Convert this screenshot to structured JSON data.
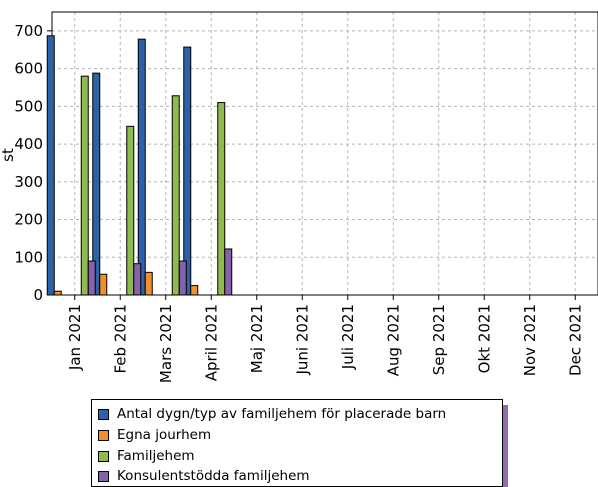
{
  "chart_data": {
    "type": "bar",
    "ylabel": "st",
    "ylim": [
      0,
      750
    ],
    "yticks": [
      0,
      100,
      200,
      300,
      400,
      500,
      600,
      700
    ],
    "grid": true,
    "legend_position": "bottom",
    "categories": [
      "Jan 2021",
      "Feb 2021",
      "Mars 2021",
      "April 2021",
      "Maj 2021",
      "Juni 2021",
      "Juli 2021",
      "Aug 2021",
      "Sep 2021",
      "Okt 2021",
      "Nov 2021",
      "Dec 2021"
    ],
    "series": [
      {
        "name": "Antal dygn/typ av familjehem för placerade barn",
        "color": "#2e62a8",
        "values": [
          687,
          588,
          678,
          657,
          null,
          null,
          null,
          null,
          null,
          null,
          null,
          null
        ]
      },
      {
        "name": "Egna jourhem",
        "color": "#f0902c",
        "values": [
          10,
          55,
          60,
          25,
          null,
          null,
          null,
          null,
          null,
          null,
          null,
          null
        ]
      },
      {
        "name": "Familjehem",
        "color": "#8dbb4d",
        "values": [
          580,
          447,
          528,
          510,
          null,
          null,
          null,
          null,
          null,
          null,
          null,
          null
        ]
      },
      {
        "name": "Konsulentstödda familjehem",
        "color": "#8562a9",
        "values": [
          90,
          83,
          90,
          122,
          null,
          null,
          null,
          null,
          null,
          null,
          null,
          null
        ]
      }
    ]
  }
}
